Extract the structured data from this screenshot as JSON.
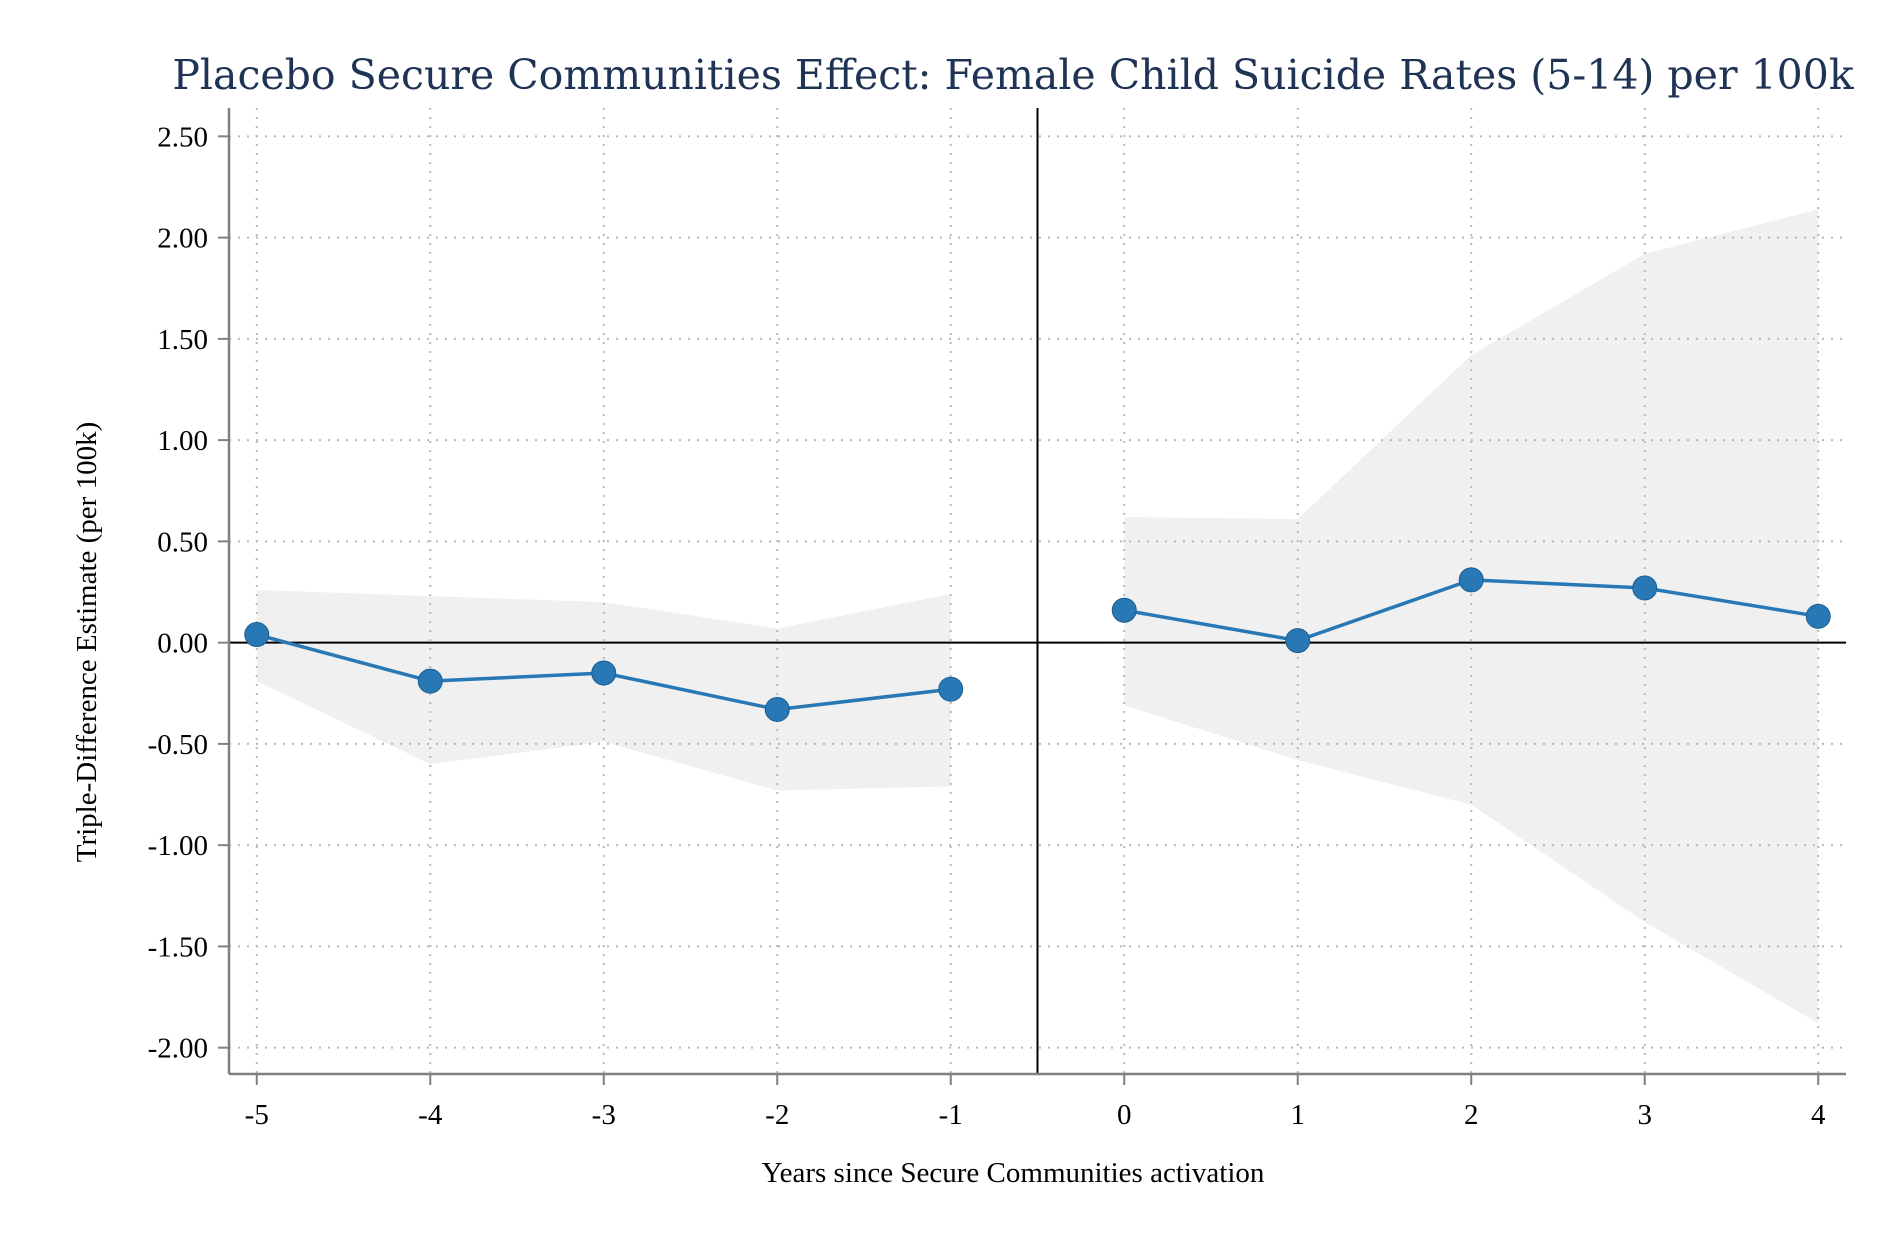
{
  "chart_data": {
    "type": "line",
    "title": "Placebo Secure Communities Effect: Female Child Suicide Rates (5-14) per 100k",
    "xlabel": "Years since Secure Communities activation",
    "ylabel": "Triple-Difference Estimate (per 100k)",
    "x": [
      -5,
      -4,
      -3,
      -2,
      -1,
      0,
      1,
      2,
      3,
      4
    ],
    "x_tick_labels": [
      "-5",
      "-4",
      "-3",
      "-2",
      "-1",
      "0",
      "1",
      "2",
      "3",
      "4"
    ],
    "y_ticks": [
      2.5,
      2.0,
      1.5,
      1.0,
      0.5,
      0.0,
      -0.5,
      -1.0,
      -1.5,
      -2.0
    ],
    "y_tick_labels": [
      "2.50",
      "2.00",
      "1.50",
      "1.00",
      "0.50",
      "0.00",
      "-0.50",
      "-1.00",
      "-1.50",
      "-2.00"
    ],
    "xlim": [
      -5.16,
      4.16
    ],
    "ylim": [
      -2.13,
      2.64
    ],
    "series": [
      {
        "pre": {
          "x": [
            -5,
            -4,
            -3,
            -2,
            -1
          ],
          "estimate": [
            0.04,
            -0.19,
            -0.15,
            -0.33,
            -0.23
          ],
          "ci_upper": [
            0.26,
            0.23,
            0.2,
            0.07,
            0.24
          ],
          "ci_lower": [
            -0.19,
            -0.6,
            -0.49,
            -0.73,
            -0.71
          ]
        },
        "post": {
          "x": [
            0,
            1,
            2,
            3,
            4
          ],
          "estimate": [
            0.16,
            0.01,
            0.31,
            0.27,
            0.13
          ],
          "ci_upper": [
            0.62,
            0.61,
            1.42,
            1.92,
            2.14
          ],
          "ci_lower": [
            -0.31,
            -0.58,
            -0.8,
            -1.38,
            -1.88
          ]
        }
      }
    ],
    "reference_lines": {
      "horizontal_y": 0,
      "vertical_x": -0.5
    },
    "grid": true,
    "legend": "none",
    "colors": {
      "line": "#2878b5",
      "ci_band": "#f0f0f0",
      "grid": "#b8b8b8",
      "axis": "#808080",
      "title": "#1f3354"
    }
  }
}
